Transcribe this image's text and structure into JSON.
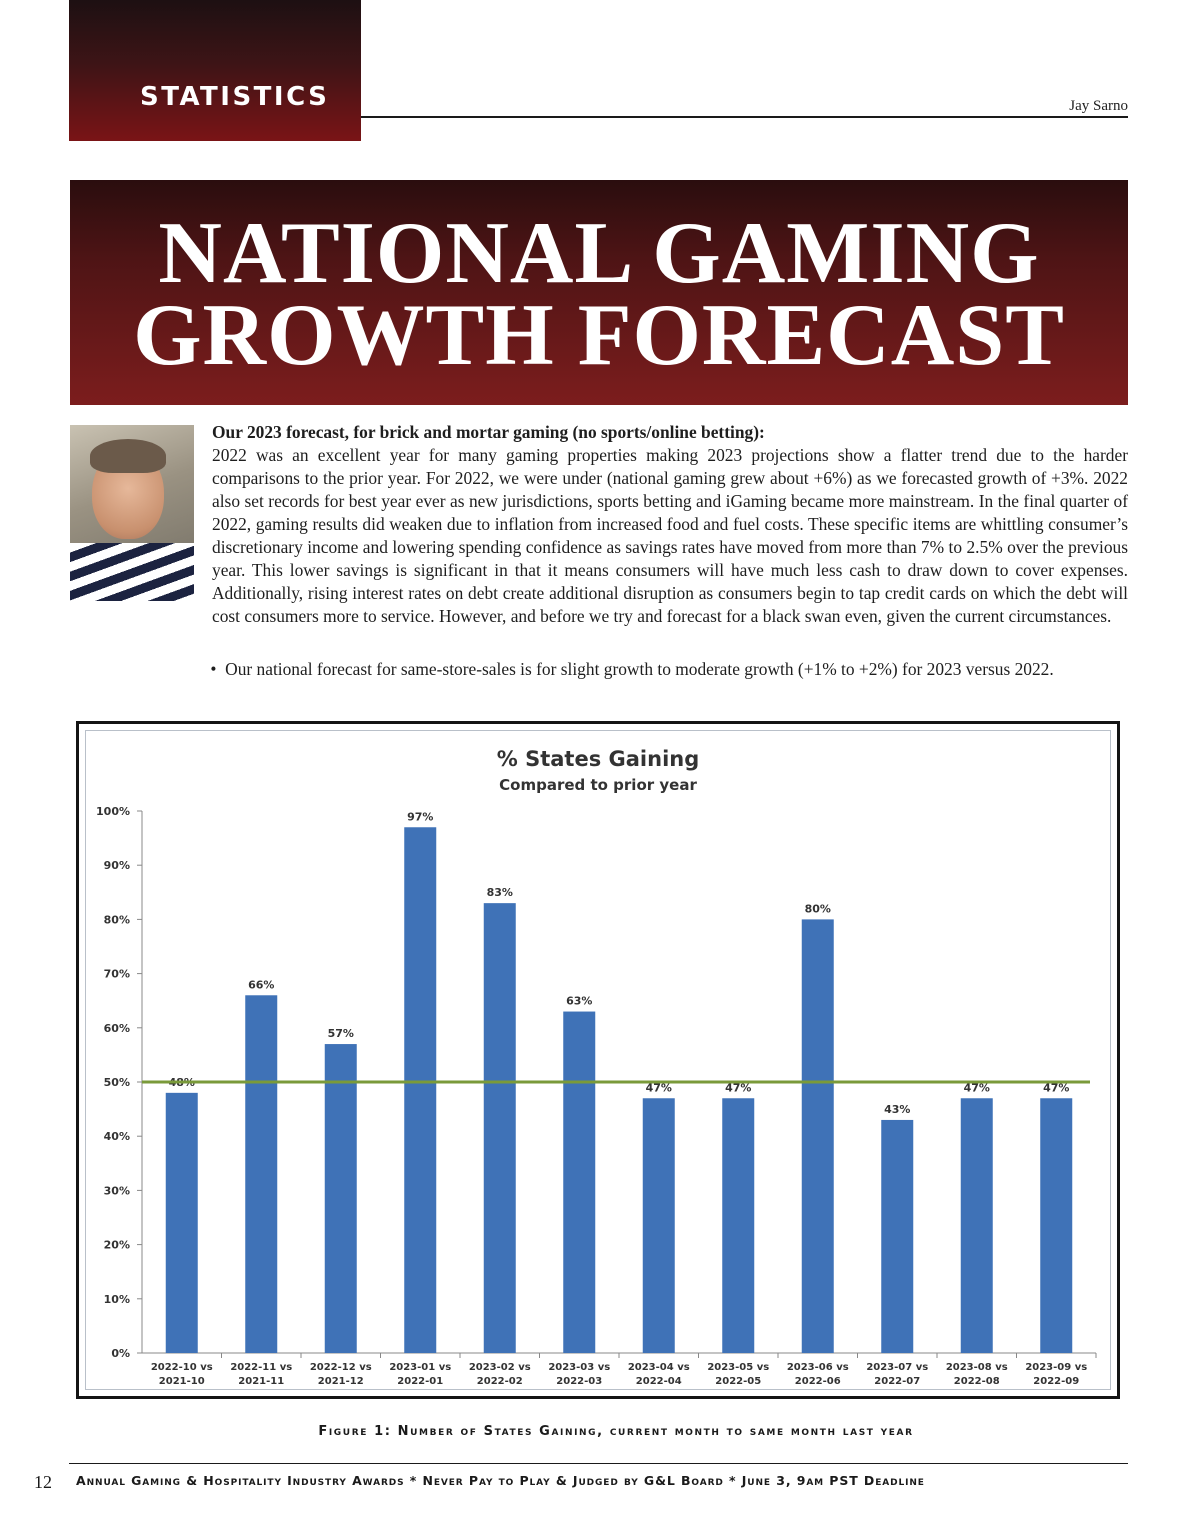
{
  "header": {
    "section": "STATISTICS",
    "author": "Jay Sarno"
  },
  "title": {
    "line1": "NATIONAL GAMING",
    "line2": "GROWTH FORECAST"
  },
  "article": {
    "lead": "Our 2023 forecast, for brick and mortar gaming (no sports/online betting):",
    "paragraph": "2022 was an excellent year for many gaming properties making 2023 projections show a flatter trend due to the harder comparisons to the prior year. For 2022, we were under (national gaming grew about +6%) as we forecasted growth of +3%. 2022 also set records for best year ever as new jurisdictions, sports betting and iGaming became more mainstream. In the final quarter of 2022, gaming results did weaken due to inflation from increased food and fuel costs. These specific items are whittling consumer’s discretionary income and lowering spending confidence as savings rates have moved from more than 7% to 2.5% over the previous year. This lower savings is significant in that it means consumers will have much less cash to draw down to cover expenses. Additionally, rising interest rates on debt create additional disruption as consumers begin to tap credit cards on which the debt will cost consumers more to service. However, and before we try and forecast for a black swan even, given the current circumstances.",
    "bullet": "Our national forecast for same-store-sales is for slight growth to moderate growth (+1% to +2%) for 2023 versus 2022."
  },
  "chart_data": {
    "type": "bar",
    "title": "% States Gaining",
    "subtitle": "Compared to prior year",
    "xlabel": "",
    "ylabel": "",
    "categories": [
      [
        "2022-10 vs",
        "2021-10"
      ],
      [
        "2022-11 vs",
        "2021-11"
      ],
      [
        "2022-12 vs",
        "2021-12"
      ],
      [
        "2023-01 vs",
        "2022-01"
      ],
      [
        "2023-02 vs",
        "2022-02"
      ],
      [
        "2023-03 vs",
        "2022-03"
      ],
      [
        "2023-04 vs",
        "2022-04"
      ],
      [
        "2023-05 vs",
        "2022-05"
      ],
      [
        "2023-06 vs",
        "2022-06"
      ],
      [
        "2023-07 vs",
        "2022-07"
      ],
      [
        "2023-08 vs",
        "2022-08"
      ],
      [
        "2023-09 vs",
        "2022-09"
      ]
    ],
    "values": [
      48,
      66,
      57,
      97,
      83,
      63,
      47,
      47,
      80,
      43,
      47,
      47
    ],
    "value_labels": [
      "48%",
      "66%",
      "57%",
      "97%",
      "83%",
      "63%",
      "47%",
      "47%",
      "80%",
      "43%",
      "47%",
      "47%"
    ],
    "yticks": [
      "0%",
      "10%",
      "20%",
      "30%",
      "40%",
      "50%",
      "60%",
      "70%",
      "80%",
      "90%",
      "100%"
    ],
    "ylim": [
      0,
      100
    ],
    "reference_line": 50,
    "bar_color": "#3f72b7",
    "reference_color": "#7a9a3a",
    "grid": false,
    "legend": "none"
  },
  "caption": "Figure 1: Number of States Gaining, current month to same month last year",
  "footer": {
    "page_number": "12",
    "text": "Annual Gaming & Hospitality Industry Awards * Never Pay to Play & Judged by G&L Board * June 3, 9am PST Deadline"
  }
}
